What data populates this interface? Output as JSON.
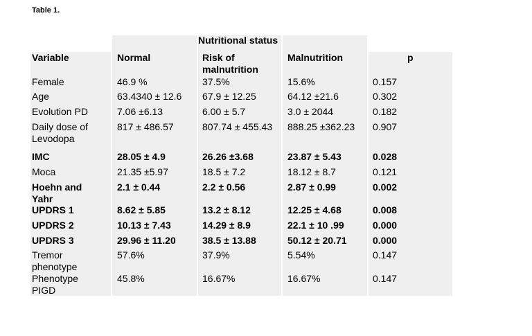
{
  "caption": "Table 1.",
  "group_header": "Nutritional status",
  "headers": {
    "variable": "Variable",
    "normal": "Normal",
    "risk_line1": "Risk of",
    "risk_line2": "malnutrition",
    "malnutrition": "Malnutrition",
    "p": "p"
  },
  "rows": [
    {
      "var": [
        "Female"
      ],
      "normal": "46.9 %",
      "risk": "37.5%",
      "mal": "15.6%",
      "p": "0.157",
      "bold": false
    },
    {
      "var": [
        "Age"
      ],
      "normal": "63.4340 ± 12.6",
      "risk": "67.9  ± 12.25",
      "mal": "64.12 ±21.6",
      "p": "0.302",
      "bold": false
    },
    {
      "var": [
        "Evolution PD"
      ],
      "normal": "7.06 ±6.13",
      "risk": "6.00 ± 5.7",
      "mal": "3.0 ± 2044",
      "p": "0.182",
      "bold": false
    },
    {
      "var": [
        "Daily dose of",
        "Levodopa"
      ],
      "normal": "817 ± 486.57",
      "risk": "807.74 ± 455.43",
      "mal": "888.25 ±362.23",
      "p": "0.907",
      "bold": false
    },
    {
      "var": [
        "IMC"
      ],
      "normal": "28.05 ± 4.9",
      "risk": "26.26 ±3.68",
      "mal": "23.87 ± 5.43",
      "p": "0.028",
      "bold": true
    },
    {
      "var": [
        "Moca"
      ],
      "normal": "21.35 ±5.97",
      "risk": "18.5 ± 7.2",
      "mal": "18.12 ± 8.7",
      "p": "0.121",
      "bold": false
    },
    {
      "var": [
        "Hoehn and",
        "Yahr"
      ],
      "normal": "2.1 ± 0.44",
      "risk": "2.2 ± 0.56",
      "mal": " 2.87 ± 0.99",
      "p": "0.002",
      "bold": true
    },
    {
      "var": [
        "UPDRS 1"
      ],
      "normal": "8.62  ± 5.85",
      "risk": "13.2  ± 8.12",
      "mal": "12.25  ± 4.68",
      "p": "0.008",
      "bold": true
    },
    {
      "var": [
        "UPDRS 2"
      ],
      "normal": "10.13  ± 7.43",
      "risk": "14.29  ± 8.9",
      "mal": "22.1  ± 10 .99",
      "p": "0.000",
      "bold": true
    },
    {
      "var": [
        "UPDRS 3"
      ],
      "normal": "29.96  ± 11.20",
      "risk": " 38.5  ± 13.88",
      "mal": "50.12  ± 20.71",
      "p": "0.000",
      "bold": true
    },
    {
      "var": [
        "Tremor",
        "phenotype"
      ],
      "normal": "57.6%",
      "risk": "37.9%",
      "mal": "5.54%",
      "p": "0.147",
      "bold": false
    },
    {
      "var": [
        "Phenotype",
        "PIGD"
      ],
      "normal": "45.8%",
      "risk": "16.67%",
      "mal": "16.67%",
      "p": "0.147",
      "bold": false
    }
  ]
}
